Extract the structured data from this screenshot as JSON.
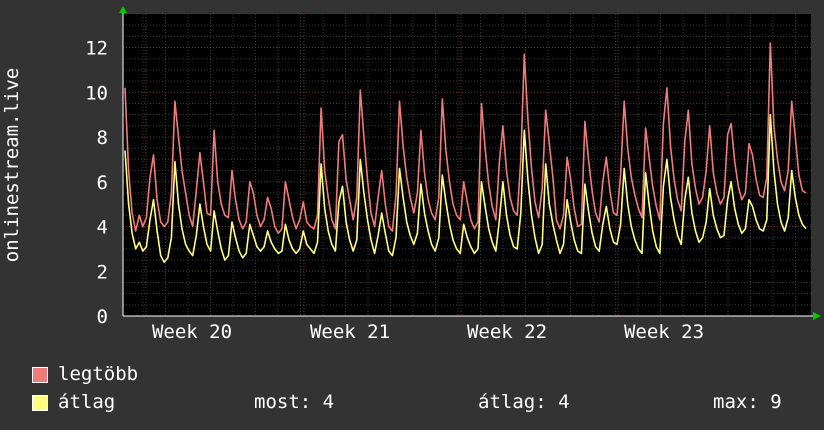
{
  "chart_data": {
    "type": "line",
    "ylabel": "onlinestream.live",
    "ylim": [
      0,
      13.5
    ],
    "yticks": [
      0,
      2,
      4,
      6,
      8,
      10,
      12
    ],
    "xticks": [
      "Week 20",
      "Week 21",
      "Week 22",
      "Week 23"
    ],
    "grid": true,
    "series": [
      {
        "name": "legtöbb",
        "color": "#f07b7b",
        "values": [
          10.2,
          6.5,
          4.6,
          3.8,
          4.5,
          4.0,
          4.4,
          6.2,
          7.2,
          5.2,
          4.2,
          4.0,
          4.2,
          5.5,
          9.6,
          8.0,
          6.5,
          5.5,
          4.5,
          4.0,
          5.6,
          7.3,
          6.0,
          4.6,
          4.5,
          8.3,
          6.0,
          5.0,
          4.5,
          4.4,
          6.5,
          5.2,
          4.3,
          3.9,
          4.2,
          6.0,
          5.5,
          4.5,
          4.0,
          4.3,
          5.3,
          4.8,
          4.0,
          3.7,
          3.9,
          6.0,
          5.2,
          4.4,
          3.9,
          4.3,
          5.1,
          4.2,
          4.0,
          3.9,
          4.5,
          9.3,
          6.5,
          5.3,
          4.3,
          3.9,
          7.8,
          8.1,
          6.1,
          5.2,
          4.3,
          5.3,
          10.1,
          8.0,
          6.1,
          4.6,
          4.0,
          5.3,
          6.5,
          5.0,
          4.0,
          3.8,
          5.4,
          9.6,
          7.6,
          6.2,
          5.3,
          4.6,
          5.5,
          8.3,
          6.4,
          5.2,
          4.6,
          4.3,
          5.3,
          9.7,
          7.4,
          6.0,
          5.0,
          4.5,
          4.3,
          6.0,
          5.1,
          4.3,
          3.9,
          4.2,
          9.5,
          7.5,
          5.9,
          4.9,
          4.3,
          6.9,
          8.5,
          6.5,
          5.3,
          4.7,
          4.5,
          7.0,
          11.7,
          8.8,
          6.6,
          5.1,
          4.4,
          5.7,
          9.2,
          7.7,
          6.2,
          4.3,
          3.9,
          4.5,
          7.1,
          6.1,
          4.8,
          4.0,
          4.1,
          8.7,
          7.0,
          5.6,
          4.6,
          4.2,
          6.0,
          7.1,
          5.6,
          4.6,
          4.5,
          6.3,
          9.6,
          7.5,
          6.2,
          5.4,
          4.8,
          4.4,
          8.4,
          7.1,
          5.8,
          4.9,
          4.3,
          8.6,
          10.2,
          7.6,
          6.1,
          5.2,
          4.7,
          7.8,
          9.2,
          6.8,
          5.7,
          5.0,
          5.3,
          6.5,
          8.5,
          6.4,
          5.5,
          5.0,
          5.3,
          8.1,
          8.6,
          6.9,
          5.8,
          5.2,
          5.5,
          7.7,
          7.2,
          6.1,
          5.4,
          5.3,
          6.2,
          12.2,
          8.5,
          7.0,
          6.0,
          5.6,
          6.5,
          9.6,
          8.0,
          6.3,
          5.6,
          5.5
        ]
      },
      {
        "name": "átlag",
        "color": "#ffff80",
        "values": [
          7.4,
          5.0,
          3.7,
          3.0,
          3.3,
          2.9,
          3.1,
          4.3,
          5.2,
          3.8,
          2.7,
          2.4,
          2.6,
          3.5,
          6.9,
          5.0,
          3.9,
          3.2,
          2.9,
          2.7,
          3.6,
          5.0,
          4.0,
          3.2,
          2.9,
          4.7,
          3.8,
          3.0,
          2.5,
          2.7,
          4.2,
          3.5,
          2.9,
          2.6,
          2.8,
          4.1,
          3.6,
          3.1,
          2.9,
          3.1,
          3.8,
          3.3,
          3.0,
          2.8,
          2.9,
          4.1,
          3.4,
          3.0,
          2.8,
          3.0,
          3.8,
          3.2,
          3.0,
          2.8,
          3.3,
          6.8,
          4.8,
          3.8,
          3.2,
          2.9,
          5.1,
          5.8,
          4.2,
          3.4,
          2.9,
          3.4,
          7.0,
          5.5,
          4.3,
          3.4,
          2.8,
          3.6,
          4.6,
          3.7,
          2.9,
          2.7,
          3.5,
          6.6,
          5.3,
          4.2,
          3.6,
          3.2,
          3.7,
          5.9,
          4.6,
          3.8,
          3.2,
          2.9,
          3.5,
          6.3,
          5.1,
          4.1,
          3.4,
          3.0,
          2.8,
          4.1,
          3.5,
          3.1,
          2.8,
          3.0,
          6.0,
          4.9,
          3.9,
          3.3,
          2.9,
          4.3,
          6.0,
          4.5,
          3.6,
          3.1,
          3.0,
          4.6,
          8.3,
          6.1,
          4.5,
          3.5,
          2.8,
          3.2,
          6.8,
          5.0,
          4.1,
          3.4,
          2.8,
          3.2,
          5.2,
          4.2,
          3.4,
          2.9,
          2.8,
          5.9,
          4.7,
          3.7,
          3.1,
          2.9,
          4.1,
          4.9,
          3.9,
          3.3,
          3.2,
          4.1,
          6.6,
          5.0,
          4.0,
          3.4,
          3.0,
          2.8,
          6.4,
          5.0,
          3.8,
          3.1,
          2.8,
          5.8,
          7.0,
          5.3,
          4.3,
          3.6,
          3.2,
          5.2,
          6.2,
          4.6,
          3.8,
          3.3,
          3.5,
          4.2,
          5.7,
          4.5,
          3.9,
          3.5,
          3.6,
          5.2,
          6.0,
          4.8,
          4.1,
          3.7,
          3.9,
          5.2,
          4.9,
          4.3,
          3.9,
          3.8,
          4.3,
          9.0,
          6.5,
          5.0,
          4.2,
          3.8,
          4.4,
          6.5,
          5.3,
          4.5,
          4.1,
          3.9
        ]
      }
    ]
  },
  "legend": [
    {
      "label": "legtöbb",
      "color": "#f07b7b"
    },
    {
      "label": "átlag",
      "color": "#ffff80"
    }
  ],
  "stats": {
    "now": "most: 4",
    "avg": "átlag: 4",
    "max": "max: 9"
  }
}
